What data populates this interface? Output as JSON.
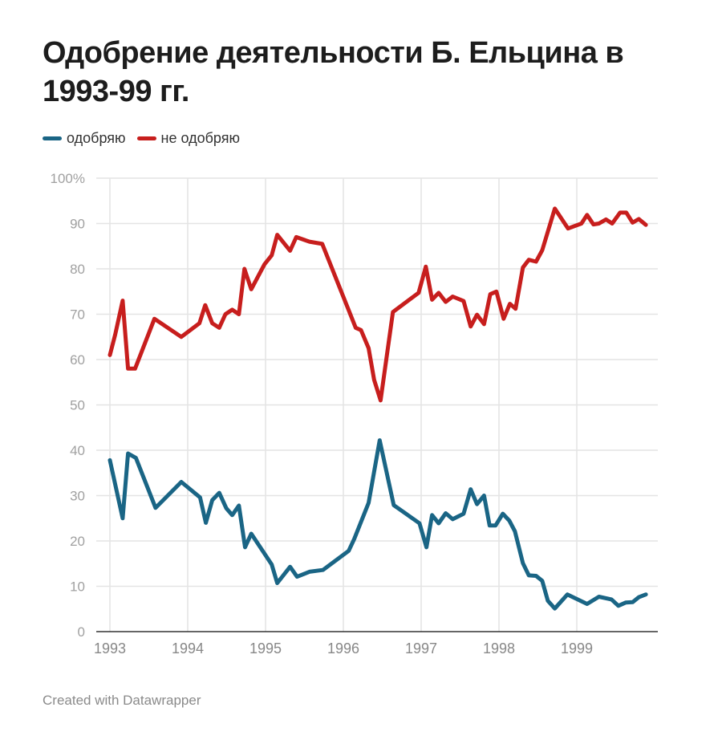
{
  "chart_data": {
    "type": "line",
    "title": "Одобрение деятельности Б. Ельцина в 1993-99 гг.",
    "ylim": [
      0,
      100
    ],
    "xlim": [
      "1993-01-01",
      "2000-01-15"
    ],
    "y_ticks": [
      "100%",
      "90",
      "80",
      "70",
      "60",
      "50",
      "40",
      "30",
      "20",
      "10",
      "0"
    ],
    "x_ticks": [
      "1993",
      "1994",
      "1995",
      "1996",
      "1997",
      "1998",
      "1999"
    ],
    "grid": true,
    "legend_position": "top-left",
    "series": [
      {
        "name": "одобряю",
        "color": "#1a6585",
        "points": [
          [
            "1993-01-01",
            37.8
          ],
          [
            "1993-03-02",
            25
          ],
          [
            "1993-03-27",
            39.3
          ],
          [
            "1993-05-03",
            38.3
          ],
          [
            "1993-08-03",
            27.3
          ],
          [
            "1993-12-02",
            33
          ],
          [
            "1994-02-28",
            29.6
          ],
          [
            "1994-03-27",
            24
          ],
          [
            "1994-04-26",
            29
          ],
          [
            "1994-05-29",
            30.6
          ],
          [
            "1994-07-01",
            27.2
          ],
          [
            "1994-07-29",
            25.7
          ],
          [
            "1994-08-29",
            27.8
          ],
          [
            "1994-09-27",
            18.6
          ],
          [
            "1994-10-26",
            21.6
          ],
          [
            "1995-01-30",
            14.8
          ],
          [
            "1995-02-25",
            10.7
          ],
          [
            "1995-04-26",
            14.3
          ],
          [
            "1995-05-29",
            12.1
          ],
          [
            "1995-07-26",
            13.2
          ],
          [
            "1995-09-27",
            13.6
          ],
          [
            "1996-01-26",
            17.8
          ],
          [
            "1996-02-21",
            20.4
          ],
          [
            "1996-04-29",
            28.4
          ],
          [
            "1996-06-20",
            42.2
          ],
          [
            "1996-08-25",
            27.9
          ],
          [
            "1996-12-24",
            23.9
          ],
          [
            "1997-01-26",
            18.6
          ],
          [
            "1997-02-21",
            25.7
          ],
          [
            "1997-03-24",
            23.9
          ],
          [
            "1997-04-26",
            26.1
          ],
          [
            "1997-05-29",
            24.8
          ],
          [
            "1997-07-19",
            26
          ],
          [
            "1997-08-21",
            31.4
          ],
          [
            "1997-09-20",
            28.1
          ],
          [
            "1997-10-23",
            30
          ],
          [
            "1997-11-18",
            23.4
          ],
          [
            "1997-12-16",
            23.4
          ],
          [
            "1998-01-19",
            26
          ],
          [
            "1998-02-18",
            24.5
          ],
          [
            "1998-03-17",
            22.1
          ],
          [
            "1998-04-23",
            15.1
          ],
          [
            "1998-05-21",
            12.4
          ],
          [
            "1998-06-24",
            12.3
          ],
          [
            "1998-07-23",
            11.2
          ],
          [
            "1998-08-18",
            6.8
          ],
          [
            "1998-09-20",
            5.1
          ],
          [
            "1998-11-18",
            8.2
          ],
          [
            "1999-02-18",
            6.1
          ],
          [
            "1999-04-15",
            7.7
          ],
          [
            "1999-06-13",
            7.1
          ],
          [
            "1999-07-15",
            5.7
          ],
          [
            "1999-08-18",
            6.4
          ],
          [
            "1999-09-20",
            6.5
          ],
          [
            "1999-10-19",
            7.6
          ],
          [
            "1999-11-21",
            8.2
          ]
        ]
      },
      {
        "name": "не одобряю",
        "color": "#c71e1d",
        "points": [
          [
            "1993-01-01",
            61
          ],
          [
            "1993-01-26",
            65.5
          ],
          [
            "1993-03-02",
            73
          ],
          [
            "1993-03-27",
            58
          ],
          [
            "1993-04-29",
            58
          ],
          [
            "1993-07-29",
            69
          ],
          [
            "1993-12-02",
            65
          ],
          [
            "1994-02-25",
            68
          ],
          [
            "1994-03-24",
            72
          ],
          [
            "1994-04-26",
            68
          ],
          [
            "1994-05-29",
            67
          ],
          [
            "1994-06-27",
            70
          ],
          [
            "1994-07-29",
            71
          ],
          [
            "1994-08-29",
            70
          ],
          [
            "1994-09-24",
            80
          ],
          [
            "1994-10-26",
            75.5
          ],
          [
            "1994-12-27",
            81
          ],
          [
            "1995-01-30",
            83
          ],
          [
            "1995-02-25",
            87.5
          ],
          [
            "1995-04-26",
            84
          ],
          [
            "1995-05-25",
            87
          ],
          [
            "1995-07-26",
            86
          ],
          [
            "1995-09-24",
            85.5
          ],
          [
            "1996-02-28",
            67
          ],
          [
            "1996-03-24",
            66.5
          ],
          [
            "1996-04-29",
            62.5
          ],
          [
            "1996-05-25",
            55.5
          ],
          [
            "1996-06-24",
            51
          ],
          [
            "1996-08-21",
            70.5
          ],
          [
            "1996-12-20",
            74.7
          ],
          [
            "1997-01-23",
            80.5
          ],
          [
            "1997-02-21",
            73.2
          ],
          [
            "1997-03-24",
            74.7
          ],
          [
            "1997-04-26",
            72.7
          ],
          [
            "1997-05-29",
            73.9
          ],
          [
            "1997-07-19",
            72.9
          ],
          [
            "1997-08-21",
            67.3
          ],
          [
            "1997-09-20",
            69.9
          ],
          [
            "1997-10-23",
            67.8
          ],
          [
            "1997-11-21",
            74.4
          ],
          [
            "1997-12-20",
            75
          ],
          [
            "1998-01-23",
            69
          ],
          [
            "1998-02-21",
            72.3
          ],
          [
            "1998-03-20",
            71.2
          ],
          [
            "1998-04-23",
            80.3
          ],
          [
            "1998-05-21",
            82
          ],
          [
            "1998-06-24",
            81.6
          ],
          [
            "1998-07-23",
            84.1
          ],
          [
            "1998-09-20",
            93.3
          ],
          [
            "1998-11-21",
            88.9
          ],
          [
            "1999-01-23",
            90
          ],
          [
            "1999-02-18",
            91.9
          ],
          [
            "1999-03-20",
            89.8
          ],
          [
            "1999-04-15",
            90
          ],
          [
            "1999-05-18",
            90.9
          ],
          [
            "1999-06-16",
            90
          ],
          [
            "1999-07-23",
            92.4
          ],
          [
            "1999-08-21",
            92.4
          ],
          [
            "1999-09-20",
            90.2
          ],
          [
            "1999-10-19",
            91
          ],
          [
            "1999-11-21",
            89.7
          ]
        ]
      }
    ]
  },
  "footer": "Created with Datawrapper"
}
